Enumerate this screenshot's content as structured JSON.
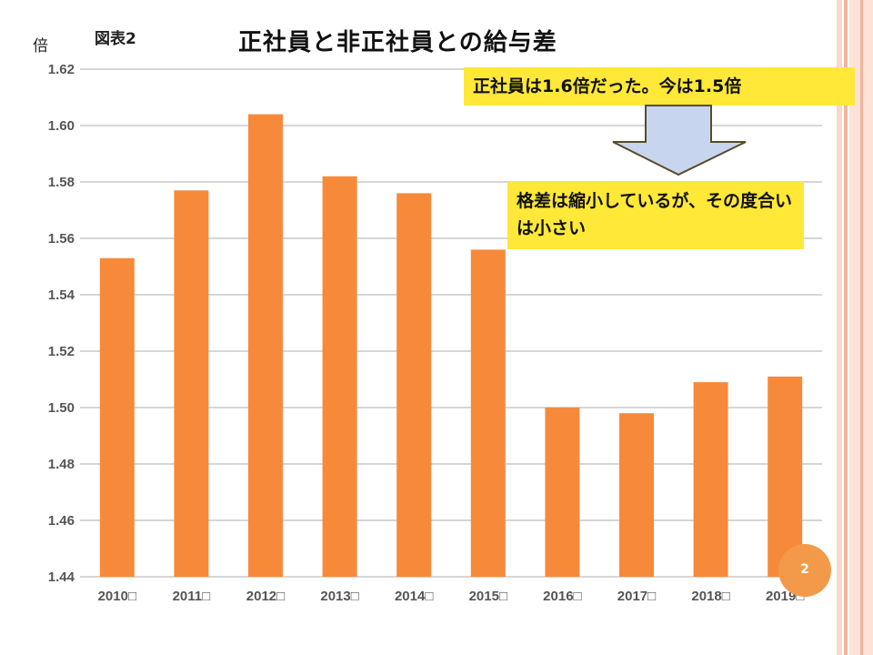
{
  "slide": {
    "unit": "倍",
    "figure_label": "図表2",
    "page_number": "2"
  },
  "notes": {
    "top": "正社員は1.6倍だった。今は1.5倍",
    "bottom": "格差は縮小しているが、その度合いは小さい"
  },
  "colors": {
    "bar": "#f68a3a",
    "grid": "#c8c8c8",
    "note_bg": "#ffe838",
    "arrow_fill": "#c7d5ee",
    "arrow_stroke": "#5a4a2a",
    "page_badge": "#f39a4a"
  },
  "chart_data": {
    "type": "bar",
    "title": "正社員と非正社員との給与差",
    "ylabel": "倍",
    "categories": [
      "2010年",
      "2011年",
      "2012年",
      "2013年",
      "2014年",
      "2015年",
      "2016年",
      "2017年",
      "2018年",
      "2019年"
    ],
    "tick_labels": [
      "2010",
      "2011",
      "2012",
      "2013",
      "2014",
      "2015",
      "2016",
      "2017",
      "2018",
      "2019"
    ],
    "values": [
      1.553,
      1.577,
      1.604,
      1.582,
      1.576,
      1.556,
      1.5,
      1.498,
      1.509,
      1.511
    ],
    "ylim": [
      1.44,
      1.62
    ],
    "yticks": [
      "1.44",
      "1.46",
      "1.48",
      "1.50",
      "1.52",
      "1.54",
      "1.56",
      "1.58",
      "1.60",
      "1.62"
    ],
    "grid": true
  }
}
